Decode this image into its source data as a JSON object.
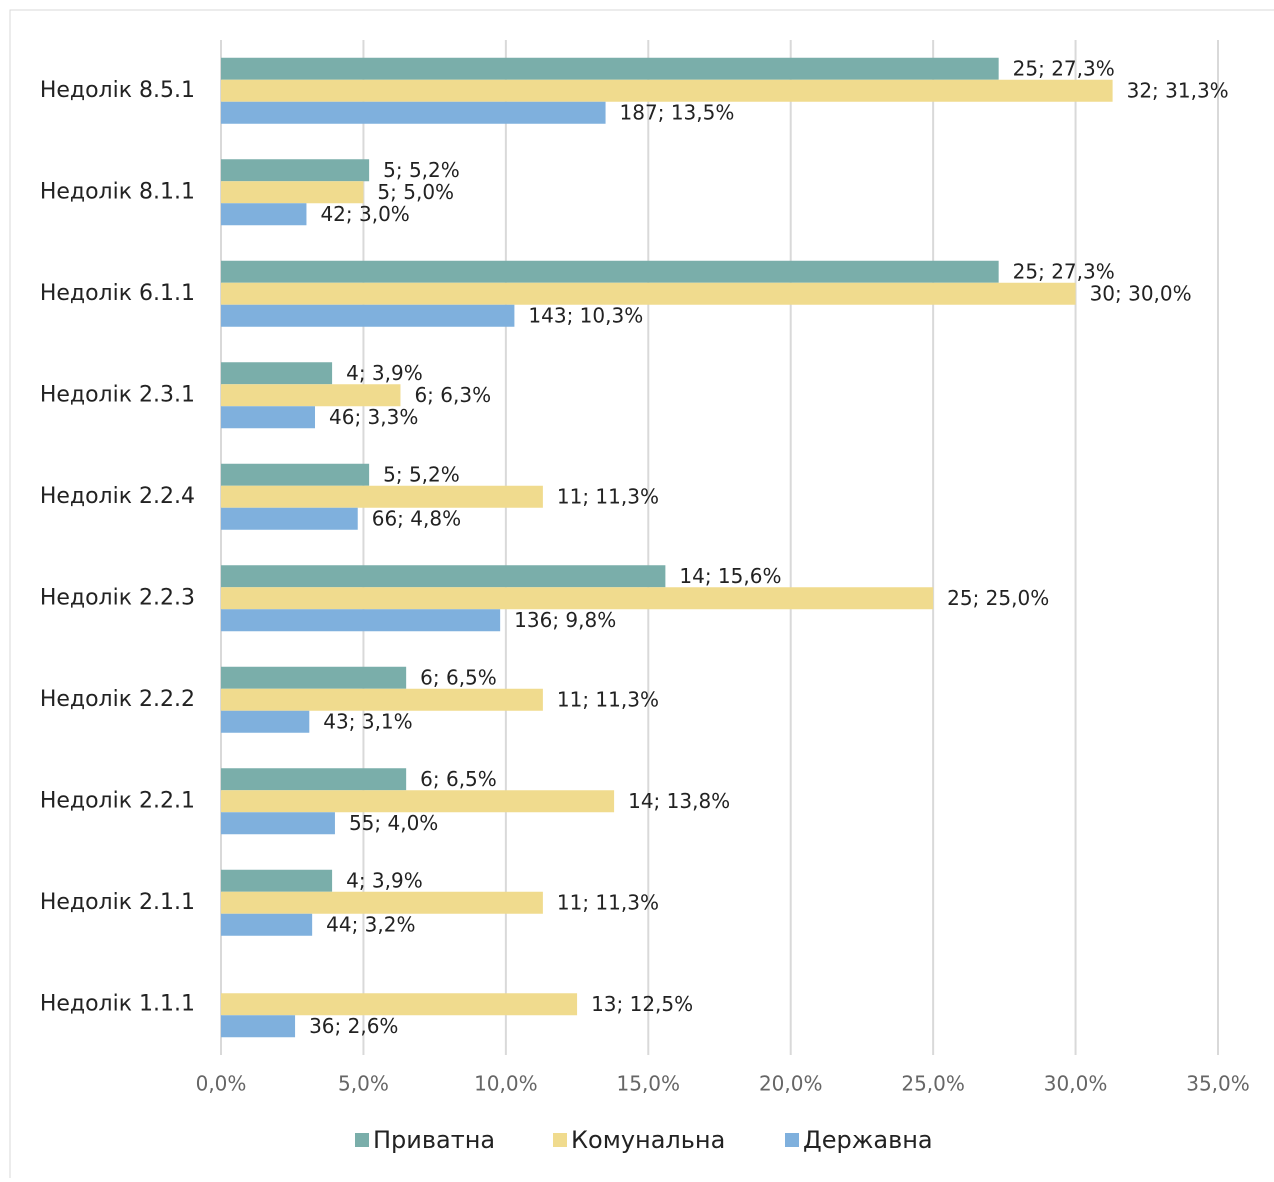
{
  "chart_data": {
    "type": "hbar",
    "categories": [
      "Недолік 8.5.1",
      "Недолік 8.1.1",
      "Недолік 6.1.1",
      "Недолік 2.3.1",
      "Недолік 2.2.4",
      "Недолік 2.2.3",
      "Недолік 2.2.2",
      "Недолік 2.2.1",
      "Недолік 2.1.1",
      "Недолік 1.1.1"
    ],
    "series": [
      {
        "name": "Приватна",
        "color": "#7aaeaa",
        "values": [
          27.3,
          5.2,
          27.3,
          3.9,
          5.2,
          15.6,
          6.5,
          6.5,
          3.9,
          null
        ],
        "value_labels": [
          "25; 27,3%",
          "5; 5,2%",
          "25; 27,3%",
          "4; 3,9%",
          "5; 5,2%",
          "14; 15,6%",
          "6; 6,5%",
          "6; 6,5%",
          "4; 3,9%",
          null
        ]
      },
      {
        "name": "Комунальна",
        "color": "#f0db8e",
        "values": [
          31.3,
          5.0,
          30.0,
          6.3,
          11.3,
          25.0,
          11.3,
          13.8,
          11.3,
          12.5
        ],
        "value_labels": [
          "32; 31,3%",
          "5; 5,0%",
          "30; 30,0%",
          "6; 6,3%",
          "11; 11,3%",
          "25; 25,0%",
          "11; 11,3%",
          "14; 13,8%",
          "11; 11,3%",
          "13; 12,5%"
        ]
      },
      {
        "name": "Державна",
        "color": "#7fb0dd",
        "values": [
          13.5,
          3.0,
          10.3,
          3.3,
          4.8,
          9.8,
          3.1,
          4.0,
          3.2,
          2.6
        ],
        "value_labels": [
          "187; 13,5%",
          "42; 3,0%",
          "143; 10,3%",
          "46; 3,3%",
          "66; 4,8%",
          "136; 9,8%",
          "43; 3,1%",
          "55; 4,0%",
          "44; 3,2%",
          "36; 2,6%"
        ]
      }
    ],
    "xlim": [
      0,
      35
    ],
    "xticks": [
      {
        "value": 0,
        "label": "0,0%"
      },
      {
        "value": 5,
        "label": "5,0%"
      },
      {
        "value": 10,
        "label": "10,0%"
      },
      {
        "value": 15,
        "label": "15,0%"
      },
      {
        "value": 20,
        "label": "20,0%"
      },
      {
        "value": 25,
        "label": "25,0%"
      },
      {
        "value": 30,
        "label": "30,0%"
      },
      {
        "value": 35,
        "label": "35,0%"
      }
    ],
    "grid": true,
    "legend": "bottom"
  }
}
